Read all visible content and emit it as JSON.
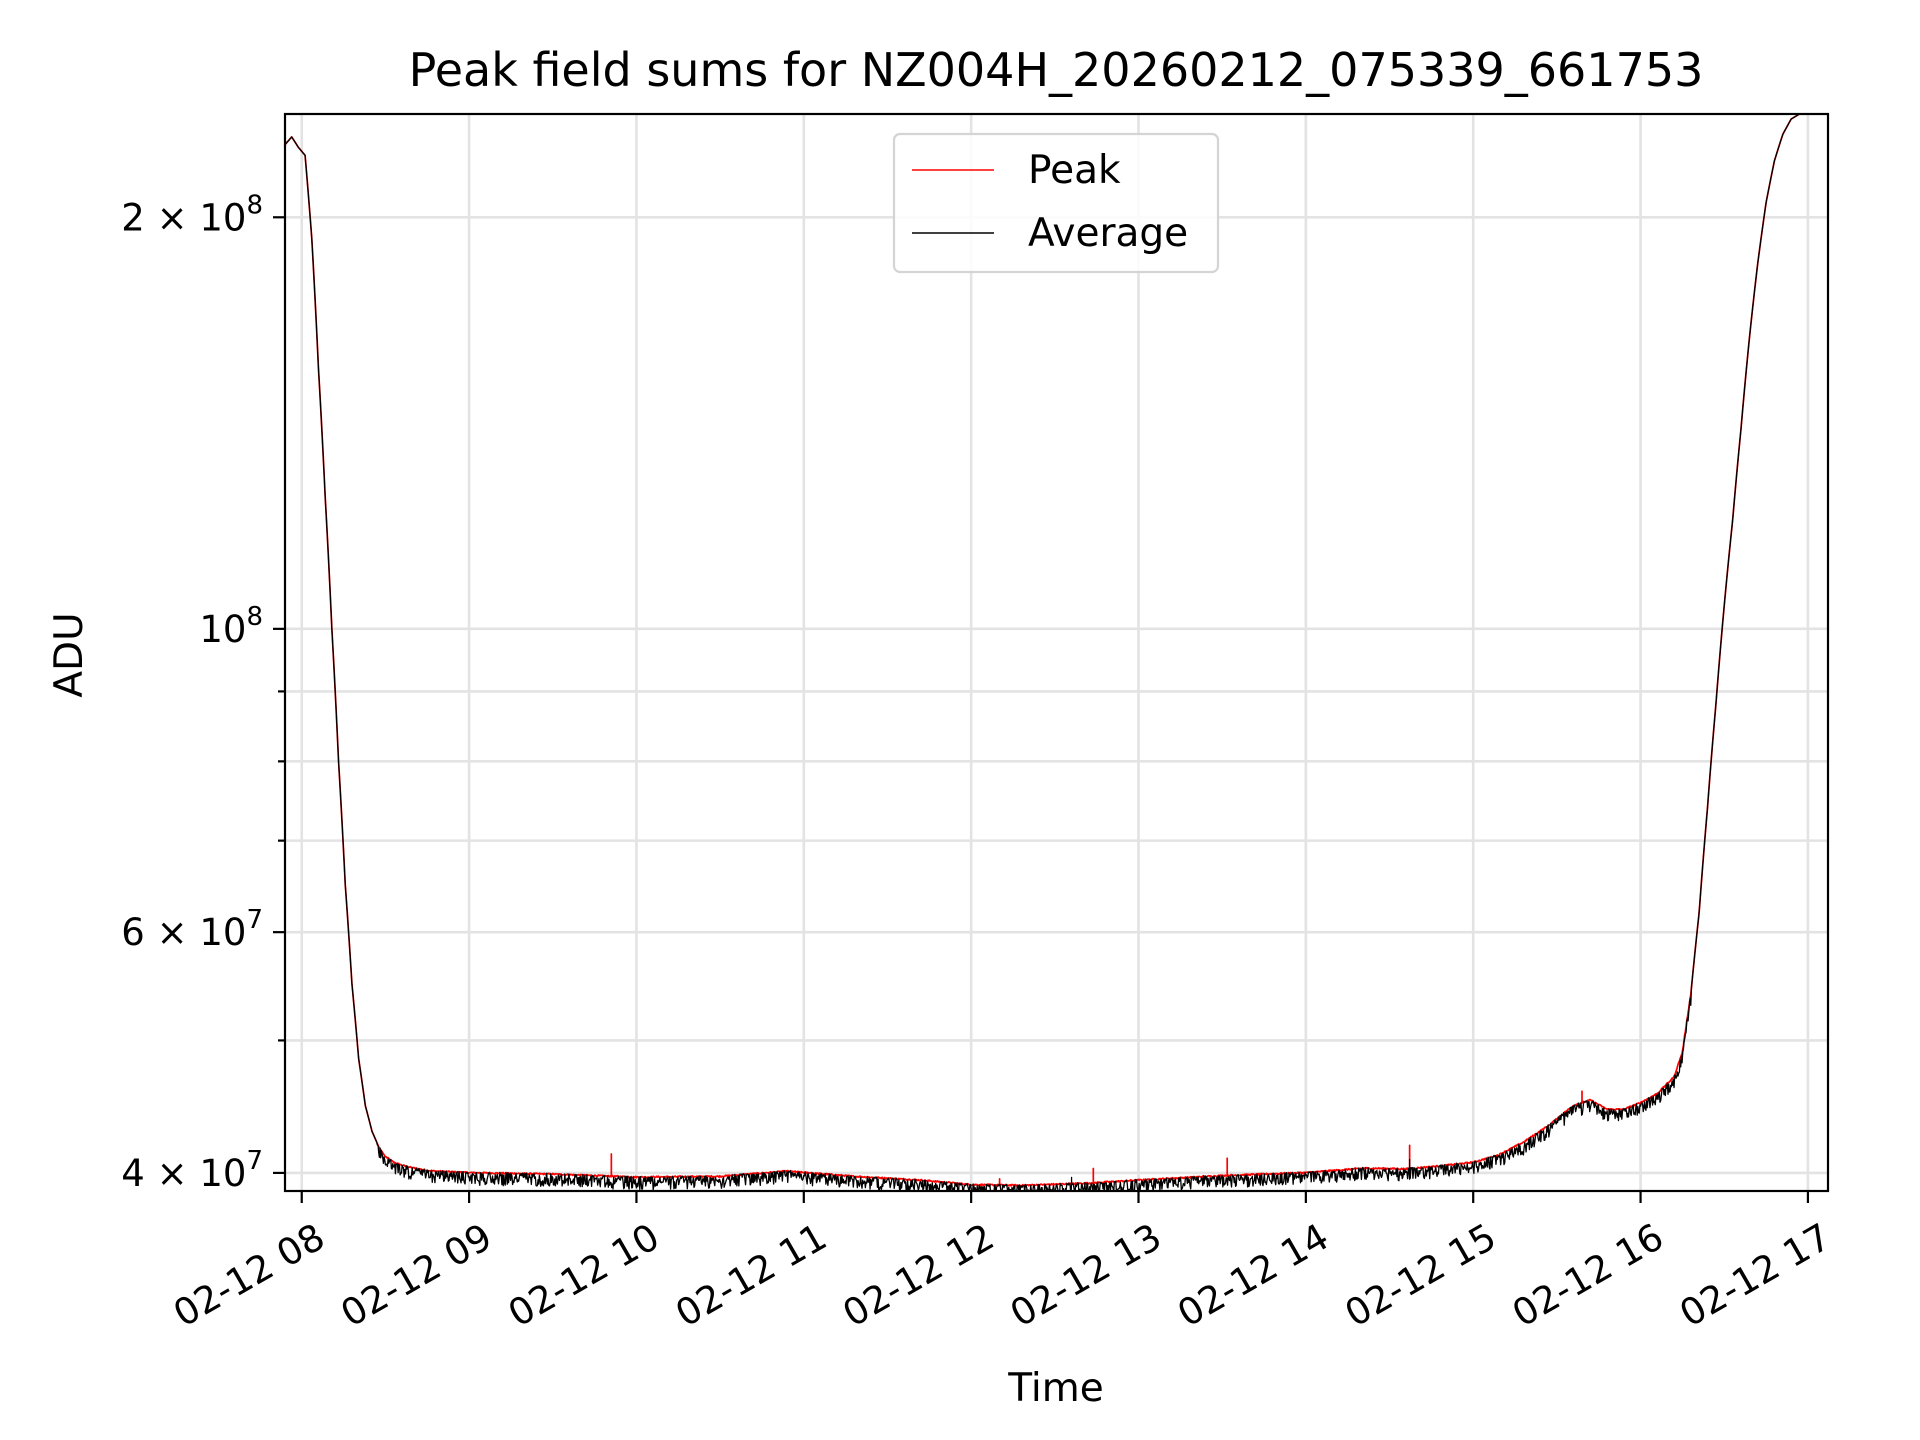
{
  "chart_data": {
    "type": "line",
    "title": "Peak field sums for NZ004H_20260212_075339_661753",
    "xlabel": "Time",
    "ylabel": "ADU",
    "y_scale": "log",
    "ylim": [
      38800000,
      238000000
    ],
    "xlim": [
      7.9,
      17.12
    ],
    "grid": true,
    "legend_location": "upper center",
    "x_ticks": [
      {
        "value": 8,
        "label": "02-12 08"
      },
      {
        "value": 9,
        "label": "02-12 09"
      },
      {
        "value": 10,
        "label": "02-12 10"
      },
      {
        "value": 11,
        "label": "02-12 11"
      },
      {
        "value": 12,
        "label": "02-12 12"
      },
      {
        "value": 13,
        "label": "02-12 13"
      },
      {
        "value": 14,
        "label": "02-12 14"
      },
      {
        "value": 15,
        "label": "02-12 15"
      },
      {
        "value": 16,
        "label": "02-12 16"
      },
      {
        "value": 17,
        "label": "02-12 17"
      }
    ],
    "y_major_ticks": [
      {
        "value": 40000000,
        "mantissa": "4 × 10",
        "exponent": "7"
      },
      {
        "value": 60000000,
        "mantissa": "6 × 10",
        "exponent": "7"
      },
      {
        "value": 100000000,
        "mantissa": "10",
        "exponent": "8"
      },
      {
        "value": 200000000,
        "mantissa": "2 × 10",
        "exponent": "8"
      }
    ],
    "y_minor_ticks": [
      50000000,
      70000000,
      80000000,
      90000000
    ],
    "series": [
      {
        "name": "Peak",
        "color": "#ff0000",
        "x": [
          7.9,
          7.94,
          7.98,
          8.02,
          8.06,
          8.1,
          8.14,
          8.18,
          8.22,
          8.26,
          8.3,
          8.34,
          8.38,
          8.42,
          8.46,
          8.5,
          8.55,
          8.6,
          8.65,
          8.7,
          8.75,
          8.8,
          8.9,
          9.0,
          9.25,
          9.5,
          9.75,
          10.0,
          10.5,
          10.9,
          11.3,
          11.7,
          12.0,
          12.3,
          12.7,
          13.0,
          13.5,
          14.0,
          14.35,
          14.6,
          14.8,
          15.0,
          15.15,
          15.3,
          15.45,
          15.6,
          15.7,
          15.8,
          15.9,
          16.0,
          16.1,
          16.2,
          16.25,
          16.3,
          16.35,
          16.4,
          16.45,
          16.5,
          16.55,
          16.6,
          16.65,
          16.7,
          16.75,
          16.8,
          16.85,
          16.9,
          16.95,
          17.05
        ],
        "y": [
          226000000,
          229000000,
          225000000,
          222000000,
          193000000,
          155000000,
          125000000,
          100000000,
          80000000,
          65000000,
          55000000,
          48500000,
          44800000,
          42900000,
          41800000,
          41100000,
          40700000,
          40500000,
          40350000,
          40250000,
          40150000,
          40100000,
          40050000,
          40000000,
          39950000,
          39900000,
          39800000,
          39700000,
          39750000,
          40100000,
          39750000,
          39500000,
          39200000,
          39150000,
          39300000,
          39500000,
          39800000,
          40000000,
          40300000,
          40250000,
          40450000,
          40700000,
          41200000,
          42100000,
          43300000,
          44800000,
          45200000,
          44500000,
          44500000,
          45000000,
          45700000,
          47000000,
          49000000,
          54000000,
          62000000,
          74000000,
          88000000,
          104000000,
          120000000,
          140000000,
          163000000,
          185000000,
          205000000,
          220000000,
          230000000,
          236000000,
          238000000,
          238000000
        ],
        "spikes": [
          {
            "x": 9.85,
            "y": 41300000
          },
          {
            "x": 12.17,
            "y": 39600000
          },
          {
            "x": 12.73,
            "y": 40300000
          },
          {
            "x": 13.53,
            "y": 41000000
          },
          {
            "x": 14.62,
            "y": 41900000
          },
          {
            "x": 15.65,
            "y": 45900000
          }
        ]
      },
      {
        "name": "Average",
        "color": "#000000",
        "x": [
          7.9,
          7.94,
          7.98,
          8.02,
          8.06,
          8.1,
          8.14,
          8.18,
          8.22,
          8.26,
          8.3,
          8.34,
          8.38,
          8.42,
          8.46,
          8.5,
          8.55,
          8.6,
          8.65,
          8.7,
          8.75,
          8.8,
          8.9,
          9.0,
          9.25,
          9.5,
          9.75,
          10.0,
          10.5,
          10.9,
          11.3,
          11.7,
          12.0,
          12.3,
          12.7,
          13.0,
          13.5,
          14.0,
          14.35,
          14.6,
          14.8,
          15.0,
          15.15,
          15.3,
          15.45,
          15.6,
          15.7,
          15.8,
          15.9,
          16.0,
          16.1,
          16.2,
          16.25,
          16.3,
          16.35,
          16.4,
          16.45,
          16.5,
          16.55,
          16.6,
          16.65,
          16.7,
          16.75,
          16.8,
          16.85,
          16.9,
          16.95,
          17.05
        ],
        "y": [
          226000000,
          229000000,
          225000000,
          222000000,
          193000000,
          155000000,
          125000000,
          100000000,
          80000000,
          65000000,
          55000000,
          48500000,
          44800000,
          42900000,
          41800000,
          41100000,
          40700000,
          40500000,
          40350000,
          40250000,
          40150000,
          40100000,
          40050000,
          40000000,
          39950000,
          39900000,
          39800000,
          39700000,
          39750000,
          40100000,
          39750000,
          39500000,
          39200000,
          39150000,
          39300000,
          39500000,
          39800000,
          40000000,
          40300000,
          40250000,
          40450000,
          40700000,
          41200000,
          42100000,
          43300000,
          44800000,
          45200000,
          44500000,
          44500000,
          45000000,
          45700000,
          47000000,
          49000000,
          54000000,
          62000000,
          74000000,
          88000000,
          104000000,
          120000000,
          140000000,
          163000000,
          185000000,
          205000000,
          220000000,
          230000000,
          236000000,
          238000000,
          238000000
        ],
        "noise_range_x": [
          8.45,
          16.3
        ],
        "noise_amplitude_fraction": 0.014,
        "spikes": [
          {
            "x": 12.6,
            "y": 39700000
          },
          {
            "x": 14.62,
            "y": 40900000
          }
        ]
      }
    ]
  }
}
